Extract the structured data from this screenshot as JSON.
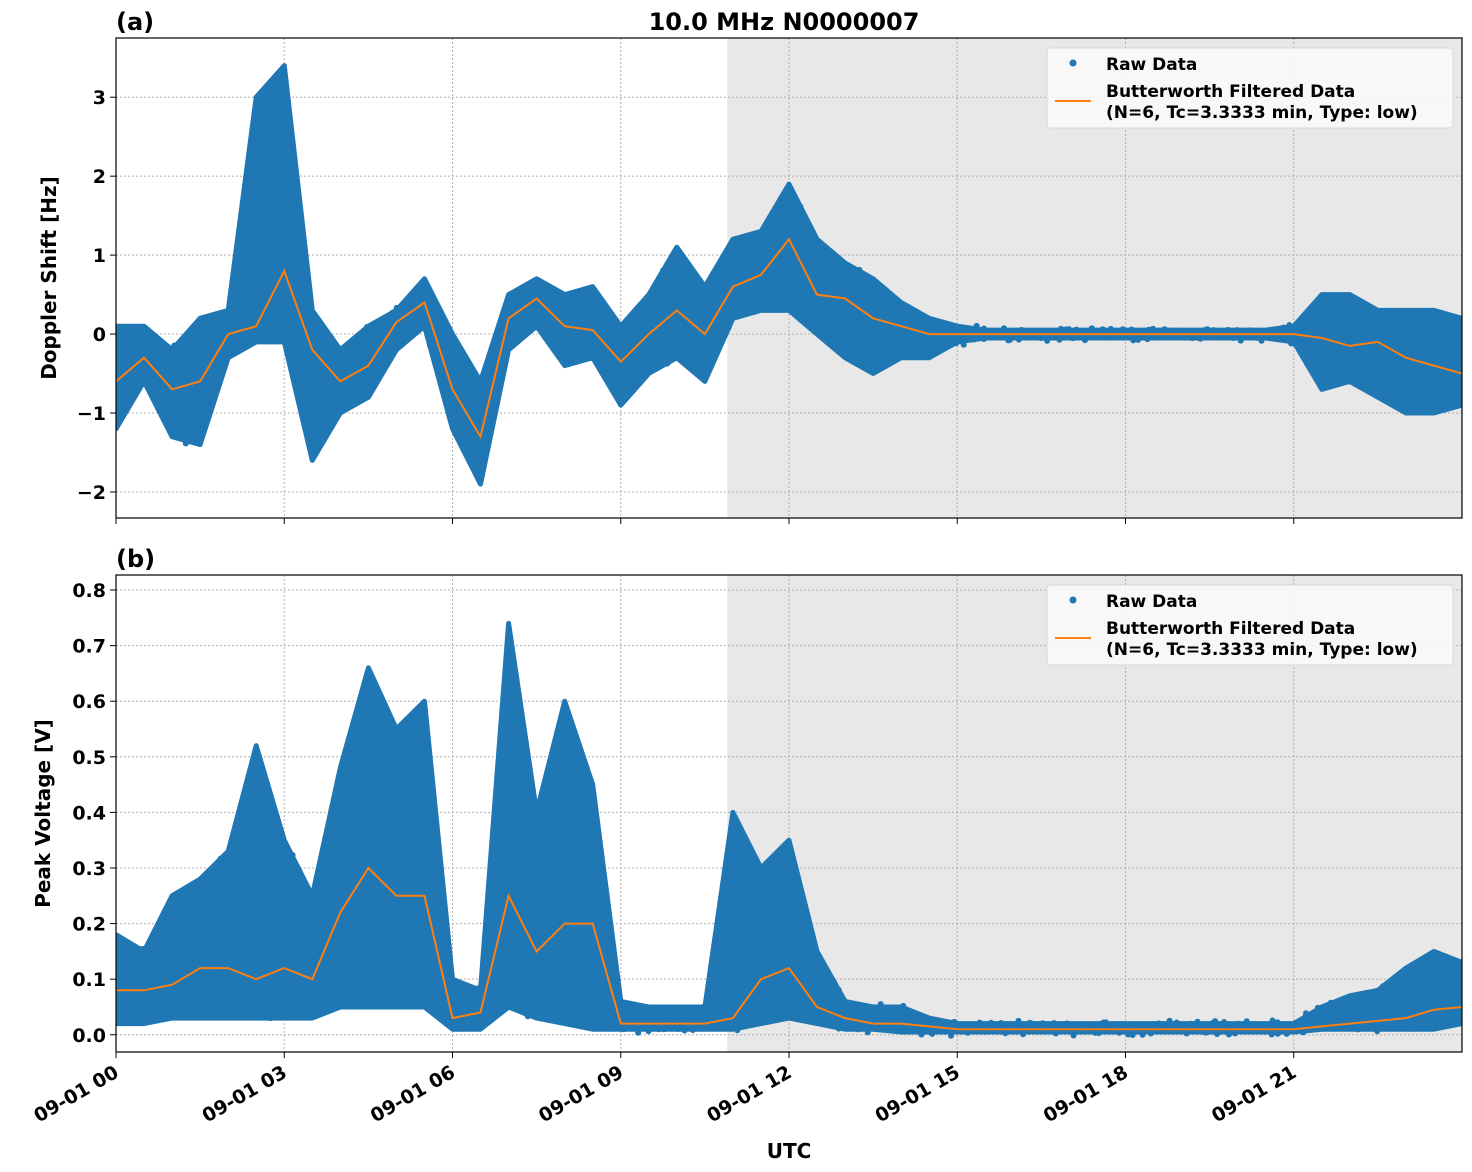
{
  "figure_title": "10.0 MHz N0000007",
  "xlabel": "UTC",
  "x_tick_labels": [
    "09-01 00",
    "09-01 03",
    "09-01 06",
    "09-01 09",
    "09-01 12",
    "09-01 15",
    "09-01 18",
    "09-01 21"
  ],
  "colors": {
    "raw": "#1f77b4",
    "filtered": "#ff7f0e",
    "shade": "#e8e8e8",
    "grid": "#b0b0b0"
  },
  "legend": {
    "raw": "Raw Data",
    "filtered_line1": "Butterworth Filtered Data",
    "filtered_line2": "(N=6, Tc=3.3333 min, Type: low)",
    "placement": "top-right"
  },
  "chart_data": [
    {
      "panel_label": "(a)",
      "type": "scatter+line",
      "ylabel": "Doppler Shift [Hz]",
      "x_unit": "hours UTC on 09-01",
      "xlim": [
        0,
        24
      ],
      "ylim": [
        -2.33,
        3.75
      ],
      "yticks": [
        -2,
        -1,
        0,
        1,
        2,
        3
      ],
      "y_tick_labels": [
        "−2",
        "−1",
        "0",
        "1",
        "2",
        "3"
      ],
      "grid": true,
      "shaded_region_hours": [
        10.9,
        24
      ],
      "t": [
        0,
        0.5,
        1,
        1.5,
        2,
        2.5,
        3,
        3.5,
        4,
        4.5,
        5,
        5.5,
        6,
        6.5,
        7,
        7.5,
        8,
        8.5,
        9,
        9.5,
        10,
        10.5,
        11,
        11.5,
        12,
        12.5,
        13,
        13.5,
        14,
        14.5,
        15,
        15.5,
        16,
        16.5,
        17,
        17.5,
        18,
        18.5,
        19,
        19.5,
        20,
        20.5,
        21,
        21.5,
        22,
        22.5,
        23,
        23.5,
        24
      ],
      "filtered": [
        -0.6,
        -0.3,
        -0.7,
        -0.6,
        0.0,
        0.1,
        0.8,
        -0.2,
        -0.6,
        -0.4,
        0.15,
        0.4,
        -0.7,
        -1.3,
        0.2,
        0.45,
        0.1,
        0.05,
        -0.35,
        0.0,
        0.3,
        0.0,
        0.6,
        0.75,
        1.2,
        0.5,
        0.45,
        0.2,
        0.1,
        0.0,
        0,
        0,
        0,
        0,
        0,
        0,
        0,
        0,
        0,
        0,
        0,
        0,
        0,
        -0.05,
        -0.15,
        -0.1,
        -0.3,
        -0.4,
        -0.5
      ],
      "raw_min": [
        -1.2,
        -0.6,
        -1.3,
        -1.4,
        -0.3,
        -0.1,
        -0.1,
        -1.6,
        -1.0,
        -0.8,
        -0.2,
        0.1,
        -1.2,
        -1.9,
        -0.2,
        0.1,
        -0.4,
        -0.3,
        -0.9,
        -0.5,
        -0.3,
        -0.6,
        0.2,
        0.3,
        0.3,
        0.0,
        -0.3,
        -0.5,
        -0.3,
        -0.3,
        -0.1,
        -0.05,
        -0.05,
        -0.05,
        -0.05,
        -0.05,
        -0.05,
        -0.05,
        -0.05,
        -0.05,
        -0.05,
        -0.05,
        -0.1,
        -0.7,
        -0.6,
        -0.8,
        -1.0,
        -1.0,
        -0.9
      ],
      "raw_max": [
        0.1,
        0.1,
        -0.2,
        0.2,
        0.3,
        3.0,
        3.4,
        0.3,
        -0.2,
        0.1,
        0.3,
        0.7,
        0.0,
        -0.6,
        0.5,
        0.7,
        0.5,
        0.6,
        0.1,
        0.5,
        1.1,
        0.6,
        1.2,
        1.3,
        1.9,
        1.2,
        0.9,
        0.7,
        0.4,
        0.2,
        0.1,
        0.05,
        0.05,
        0.05,
        0.05,
        0.05,
        0.05,
        0.05,
        0.05,
        0.05,
        0.05,
        0.05,
        0.1,
        0.5,
        0.5,
        0.3,
        0.3,
        0.3,
        0.2
      ]
    },
    {
      "panel_label": "(b)",
      "type": "scatter+line",
      "ylabel": "Peak Voltage [V]",
      "x_unit": "hours UTC on 09-01",
      "xlim": [
        0,
        24
      ],
      "ylim": [
        -0.031,
        0.827
      ],
      "yticks": [
        0,
        0.1,
        0.2,
        0.3,
        0.4,
        0.5,
        0.6,
        0.7,
        0.8
      ],
      "y_tick_labels": [
        "0.0",
        "0.1",
        "0.2",
        "0.3",
        "0.4",
        "0.5",
        "0.6",
        "0.7",
        "0.8"
      ],
      "grid": true,
      "shaded_region_hours": [
        10.9,
        24
      ],
      "t": [
        0,
        0.5,
        1,
        1.5,
        2,
        2.5,
        3,
        3.5,
        4,
        4.5,
        5,
        5.5,
        6,
        6.5,
        7,
        7.5,
        8,
        8.5,
        9,
        9.5,
        10,
        10.5,
        11,
        11.5,
        12,
        12.5,
        13,
        13.5,
        14,
        14.5,
        15,
        15.5,
        16,
        16.5,
        17,
        17.5,
        18,
        18.5,
        19,
        19.5,
        20,
        20.5,
        21,
        21.5,
        22,
        22.5,
        23,
        23.5,
        24
      ],
      "filtered": [
        0.08,
        0.08,
        0.09,
        0.12,
        0.12,
        0.1,
        0.12,
        0.1,
        0.22,
        0.3,
        0.25,
        0.25,
        0.03,
        0.04,
        0.25,
        0.15,
        0.2,
        0.2,
        0.02,
        0.02,
        0.02,
        0.02,
        0.03,
        0.1,
        0.12,
        0.05,
        0.03,
        0.02,
        0.02,
        0.015,
        0.01,
        0.01,
        0.01,
        0.01,
        0.01,
        0.01,
        0.01,
        0.01,
        0.01,
        0.01,
        0.01,
        0.01,
        0.01,
        0.015,
        0.02,
        0.025,
        0.03,
        0.045,
        0.05
      ],
      "raw_min": [
        0.02,
        0.02,
        0.03,
        0.03,
        0.03,
        0.03,
        0.03,
        0.03,
        0.05,
        0.05,
        0.05,
        0.05,
        0.01,
        0.01,
        0.05,
        0.03,
        0.02,
        0.01,
        0.01,
        0.01,
        0.01,
        0.01,
        0.01,
        0.02,
        0.03,
        0.02,
        0.01,
        0.01,
        0.005,
        0.005,
        0.005,
        0.005,
        0.005,
        0.005,
        0.005,
        0.005,
        0.005,
        0.005,
        0.005,
        0.005,
        0.005,
        0.005,
        0.005,
        0.01,
        0.01,
        0.01,
        0.01,
        0.01,
        0.02
      ],
      "raw_max": [
        0.18,
        0.15,
        0.25,
        0.28,
        0.33,
        0.52,
        0.35,
        0.25,
        0.48,
        0.66,
        0.55,
        0.6,
        0.1,
        0.08,
        0.74,
        0.4,
        0.6,
        0.45,
        0.06,
        0.05,
        0.05,
        0.05,
        0.4,
        0.3,
        0.35,
        0.15,
        0.06,
        0.05,
        0.05,
        0.03,
        0.02,
        0.02,
        0.02,
        0.02,
        0.02,
        0.02,
        0.02,
        0.02,
        0.02,
        0.02,
        0.02,
        0.02,
        0.02,
        0.05,
        0.07,
        0.08,
        0.12,
        0.15,
        0.13
      ]
    }
  ]
}
